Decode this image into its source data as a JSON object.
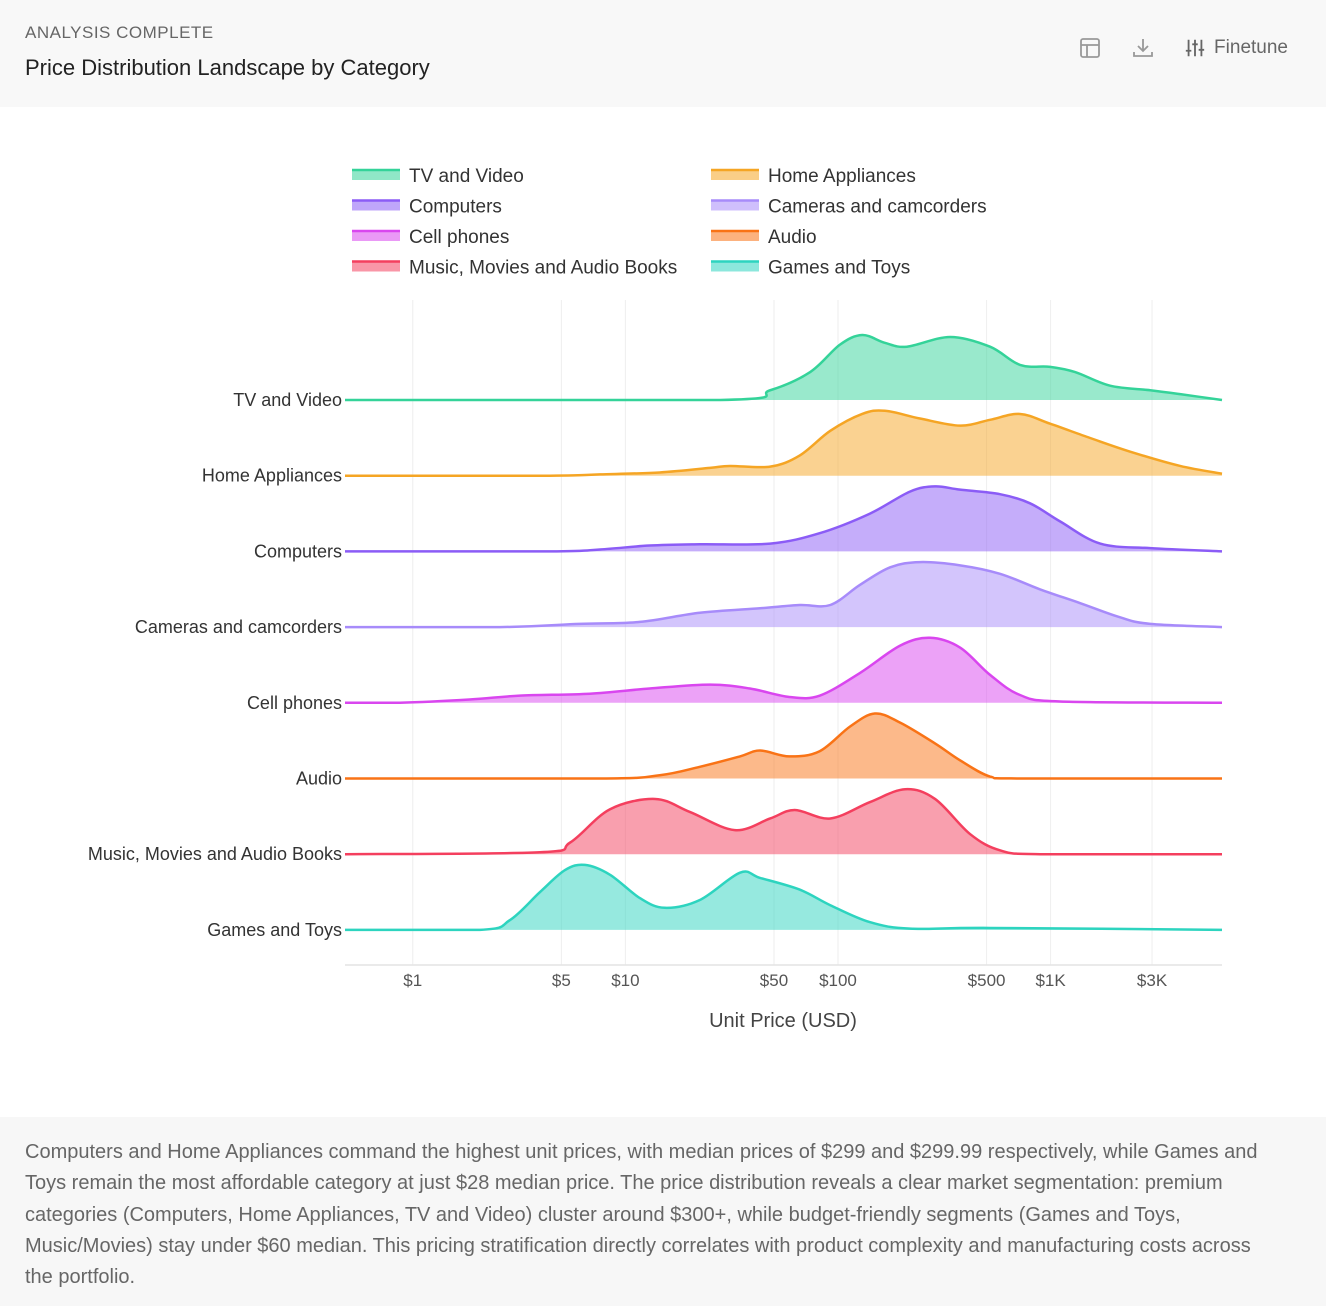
{
  "header": {
    "status": "ANALYSIS COMPLETE",
    "title": "Price Distribution Landscape by Category",
    "finetune_label": "Finetune",
    "icons": [
      "table-icon",
      "download-icon",
      "sliders-icon"
    ]
  },
  "insight": "Computers and Home Appliances command the highest unit prices, with median prices of $299 and $299.99 respectively, while Games and Toys remain the most affordable category at just $28 median price. The price distribution reveals a clear market segmentation: premium categories (Computers, Home Appliances, TV and Video) cluster around $300+, while budget-friendly segments (Games and Toys, Music/Movies) stay under $60 median. This pricing stratification directly correlates with product complexity and manufacturing costs across the portfolio.",
  "chart_data": {
    "type": "ridgeline",
    "xlabel": "Unit Price (USD)",
    "x_scale": "log",
    "xlim": [
      0.48,
      6400
    ],
    "x_ticks": [
      {
        "v": 1,
        "label": "$1"
      },
      {
        "v": 5,
        "label": "$5"
      },
      {
        "v": 10,
        "label": "$10"
      },
      {
        "v": 50,
        "label": "$50"
      },
      {
        "v": 100,
        "label": "$100"
      },
      {
        "v": 500,
        "label": "$500"
      },
      {
        "v": 1000,
        "label": "$1K"
      },
      {
        "v": 3000,
        "label": "$3K"
      }
    ],
    "grid": true,
    "legend": "top",
    "series": [
      {
        "name": "TV and Video",
        "color": "#34d399",
        "points": [
          [
            28,
            0
          ],
          [
            48,
            0.15
          ],
          [
            74,
            0.43
          ],
          [
            102,
            0.85
          ],
          [
            130,
            1
          ],
          [
            166,
            0.88
          ],
          [
            211,
            0.82
          ],
          [
            337,
            0.97
          ],
          [
            519,
            0.82
          ],
          [
            718,
            0.54
          ],
          [
            995,
            0.51
          ],
          [
            1304,
            0.43
          ],
          [
            1905,
            0.22
          ],
          [
            2940,
            0.15
          ],
          [
            4066,
            0.09
          ],
          [
            6412,
            0
          ]
        ]
      },
      {
        "name": "Home Appliances",
        "color": "#f5a524",
        "points": [
          [
            4.4,
            0
          ],
          [
            7.6,
            0.02
          ],
          [
            14.5,
            0.05
          ],
          [
            25,
            0.12
          ],
          [
            31,
            0.15
          ],
          [
            48,
            0.14
          ],
          [
            66,
            0.31
          ],
          [
            92,
            0.69
          ],
          [
            130,
            0.95
          ],
          [
            166,
            1
          ],
          [
            243,
            0.88
          ],
          [
            375,
            0.77
          ],
          [
            519,
            0.86
          ],
          [
            718,
            0.95
          ],
          [
            995,
            0.8
          ],
          [
            1535,
            0.58
          ],
          [
            2367,
            0.37
          ],
          [
            4066,
            0.15
          ],
          [
            6412,
            0.03
          ]
        ]
      },
      {
        "name": "Computers",
        "color": "#8b5cf6",
        "points": [
          [
            4.4,
            0
          ],
          [
            7.6,
            0.03
          ],
          [
            13,
            0.09
          ],
          [
            22.4,
            0.11
          ],
          [
            48,
            0.12
          ],
          [
            82,
            0.28
          ],
          [
            141,
            0.58
          ],
          [
            218,
            0.92
          ],
          [
            286,
            1
          ],
          [
            375,
            0.95
          ],
          [
            578,
            0.88
          ],
          [
            800,
            0.74
          ],
          [
            1110,
            0.46
          ],
          [
            1710,
            0.12
          ],
          [
            2940,
            0.05
          ],
          [
            6412,
            0
          ]
        ]
      },
      {
        "name": "Cameras and camcorders",
        "color": "#a78bfa",
        "points": [
          [
            2.57,
            0
          ],
          [
            6.1,
            0.05
          ],
          [
            11.7,
            0.08
          ],
          [
            22.4,
            0.22
          ],
          [
            43,
            0.29
          ],
          [
            66,
            0.34
          ],
          [
            92,
            0.34
          ],
          [
            127,
            0.65
          ],
          [
            176,
            0.92
          ],
          [
            243,
            1
          ],
          [
            375,
            0.95
          ],
          [
            578,
            0.82
          ],
          [
            893,
            0.58
          ],
          [
            1373,
            0.37
          ],
          [
            2124,
            0.15
          ],
          [
            2940,
            0.05
          ],
          [
            6412,
            0
          ]
        ]
      },
      {
        "name": "Cell phones",
        "color": "#d946ef",
        "points": [
          [
            0.87,
            0
          ],
          [
            1.85,
            0.05
          ],
          [
            3.19,
            0.11
          ],
          [
            6.8,
            0.14
          ],
          [
            13,
            0.22
          ],
          [
            25,
            0.28
          ],
          [
            38.5,
            0.22
          ],
          [
            59,
            0.09
          ],
          [
            82,
            0.11
          ],
          [
            127,
            0.46
          ],
          [
            196,
            0.88
          ],
          [
            271,
            1
          ],
          [
            375,
            0.85
          ],
          [
            519,
            0.43
          ],
          [
            718,
            0.12
          ],
          [
            1110,
            0.02
          ],
          [
            6412,
            0
          ]
        ]
      },
      {
        "name": "Audio",
        "color": "#f97316",
        "points": [
          [
            7.6,
            0
          ],
          [
            14.5,
            0.05
          ],
          [
            22.4,
            0.18
          ],
          [
            34.6,
            0.34
          ],
          [
            43,
            0.43
          ],
          [
            59,
            0.34
          ],
          [
            82,
            0.42
          ],
          [
            114,
            0.8
          ],
          [
            149,
            1
          ],
          [
            196,
            0.86
          ],
          [
            286,
            0.54
          ],
          [
            375,
            0.28
          ],
          [
            519,
            0.03
          ],
          [
            718,
            0
          ]
        ]
      },
      {
        "name": "Music, Movies and Audio Books",
        "color": "#f43f5e",
        "points": [
          [
            3.96,
            0.03
          ],
          [
            5.5,
            0.18
          ],
          [
            8.45,
            0.69
          ],
          [
            13.8,
            0.85
          ],
          [
            20.1,
            0.65
          ],
          [
            32.7,
            0.37
          ],
          [
            48,
            0.55
          ],
          [
            62.6,
            0.68
          ],
          [
            92,
            0.55
          ],
          [
            141,
            0.8
          ],
          [
            207,
            1
          ],
          [
            286,
            0.85
          ],
          [
            418,
            0.31
          ],
          [
            578,
            0.06
          ],
          [
            893,
            0
          ]
        ]
      },
      {
        "name": "Games and Toys",
        "color": "#2dd4bf",
        "points": [
          [
            2.07,
            0
          ],
          [
            2.86,
            0.15
          ],
          [
            3.96,
            0.58
          ],
          [
            5.2,
            0.92
          ],
          [
            6.45,
            1
          ],
          [
            8.45,
            0.85
          ],
          [
            11.7,
            0.49
          ],
          [
            15.3,
            0.34
          ],
          [
            22.4,
            0.46
          ],
          [
            34.6,
            0.88
          ],
          [
            43,
            0.8
          ],
          [
            66,
            0.62
          ],
          [
            92,
            0.38
          ],
          [
            141,
            0.12
          ],
          [
            218,
            0.02
          ],
          [
            519,
            0.03
          ],
          [
            6412,
            0
          ]
        ]
      }
    ]
  }
}
